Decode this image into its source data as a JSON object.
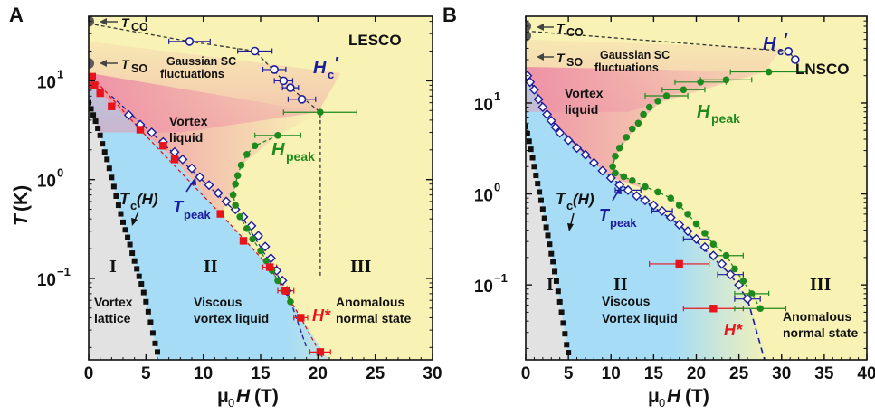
{
  "figure": {
    "ylabel_T": "T",
    "ylabel_unit": "(K)",
    "xlabel_mu": "μ",
    "xlabel_sub0": "0",
    "xlabel_H": "H",
    "xlabel_unit": "(T)"
  },
  "colors": {
    "normal_bg": "#f8f2b4",
    "vortex_liquid": "#a6dcf6",
    "vortex_lattice": "#e2e2e2",
    "vortex_liquid_pink": "#ee8ea6",
    "tc_marker": "#111111",
    "hstar": "#e8141c",
    "hpeak": "#1e8a1e",
    "tpeak": "#1c1c9c",
    "hc_prime": "#1c1c9c",
    "gray_marker": "#5a5a5a"
  },
  "chart_data": [
    {
      "panel": "A",
      "type": "scatter",
      "sample": "LESCO",
      "x_scale": "linear",
      "y_scale": "log",
      "xlim": [
        0,
        30
      ],
      "ylim": [
        0.015,
        45
      ],
      "x_ticks": [
        0,
        5,
        10,
        15,
        20,
        25,
        30
      ],
      "y_ticks": [
        {
          "v": 10,
          "base": "10",
          "exp": "1"
        },
        {
          "v": 1,
          "base": "10",
          "exp": "0"
        },
        {
          "v": 0.1,
          "base": "10",
          "exp": "−1"
        }
      ],
      "labels": {
        "tco_T": "T",
        "tco_sub": "CO",
        "tso_T": "T",
        "tso_sub": "SO",
        "gauss_1": "Gaussian SC",
        "gauss_2": "fluctuations",
        "vortex_1": "Vortex",
        "vortex_2": "liquid",
        "hc_H": "H",
        "hc_sub": "c",
        "hc_prime": "′",
        "hpeak_H": "H",
        "hpeak_sub": "peak",
        "tpeak_T": "T",
        "tpeak_sub": "peak",
        "tc_T": "T",
        "tc_sub": "c",
        "tc_H": "(H)",
        "region_I": "I",
        "region_II": "II",
        "region_III": "III",
        "lattice_1": "Vortex",
        "lattice_2": "lattice",
        "viscous_1": "Viscous",
        "viscous_2": "vortex liquid",
        "anom_1": "Anomalous",
        "anom_2": "normal state",
        "hstar": "H*"
      },
      "tc_H": [
        [
          0,
          6
        ],
        [
          0.2,
          5.2
        ],
        [
          0.4,
          4.5
        ],
        [
          0.6,
          3.9
        ],
        [
          0.8,
          3.3
        ],
        [
          1.0,
          2.8
        ],
        [
          1.2,
          2.3
        ],
        [
          1.4,
          1.9
        ],
        [
          1.6,
          1.6
        ],
        [
          1.8,
          1.3
        ],
        [
          2.0,
          1.05
        ],
        [
          2.2,
          0.85
        ],
        [
          2.4,
          0.68
        ],
        [
          2.6,
          0.55
        ],
        [
          2.8,
          0.45
        ],
        [
          3.0,
          0.37
        ],
        [
          3.2,
          0.31
        ],
        [
          3.4,
          0.26
        ],
        [
          3.6,
          0.22
        ],
        [
          3.8,
          0.18
        ],
        [
          4.0,
          0.15
        ],
        [
          4.2,
          0.125
        ],
        [
          4.4,
          0.105
        ],
        [
          4.6,
          0.088
        ],
        [
          4.8,
          0.072
        ],
        [
          5.0,
          0.058
        ],
        [
          5.2,
          0.046
        ],
        [
          5.4,
          0.036
        ],
        [
          5.6,
          0.028
        ],
        [
          5.8,
          0.022
        ],
        [
          6.0,
          0.018
        ]
      ],
      "hstar": [
        [
          0.3,
          11
        ],
        [
          0.5,
          9
        ],
        [
          1.0,
          7.5
        ],
        [
          2.0,
          5.5
        ],
        [
          4.5,
          3.2
        ],
        [
          6.5,
          2.2
        ],
        [
          7.5,
          1.6
        ],
        [
          11.5,
          0.45
        ],
        [
          13.5,
          0.24
        ],
        [
          15.8,
          0.13
        ],
        [
          17.2,
          0.075
        ],
        [
          18.5,
          0.04
        ],
        [
          20.2,
          0.018
        ]
      ],
      "hstar_err": [
        [
          15.8,
          0.13,
          0.6
        ],
        [
          17.2,
          0.075,
          0.7
        ],
        [
          18.5,
          0.04,
          0.6
        ],
        [
          20.2,
          0.018,
          0.9
        ]
      ],
      "hpeak": [
        [
          20.2,
          4.8
        ],
        [
          16.5,
          2.8
        ],
        [
          14.5,
          2.2
        ],
        [
          13.8,
          1.8
        ],
        [
          13.3,
          1.4
        ],
        [
          13.0,
          1.1
        ],
        [
          12.8,
          0.9
        ],
        [
          12.6,
          0.7
        ],
        [
          12.8,
          0.55
        ],
        [
          13.2,
          0.42
        ],
        [
          13.8,
          0.32
        ],
        [
          14.3,
          0.25
        ],
        [
          15.0,
          0.19
        ],
        [
          15.5,
          0.15
        ],
        [
          16.0,
          0.12
        ],
        [
          16.5,
          0.095
        ],
        [
          17.0,
          0.075
        ],
        [
          17.6,
          0.058
        ]
      ],
      "hpeak_err": [
        [
          20.2,
          4.8,
          3.2
        ],
        [
          16.5,
          2.8,
          2.0
        ]
      ],
      "tpeak": [
        [
          3.5,
          4.5
        ],
        [
          4.5,
          3.6
        ],
        [
          5.5,
          3.0
        ],
        [
          6.5,
          2.4
        ],
        [
          7.5,
          1.9
        ],
        [
          8.2,
          1.6
        ],
        [
          9.0,
          1.3
        ],
        [
          9.7,
          1.06
        ],
        [
          10.5,
          0.88
        ],
        [
          11.3,
          0.73
        ],
        [
          12.0,
          0.6
        ],
        [
          12.8,
          0.5
        ],
        [
          13.5,
          0.42
        ],
        [
          14.2,
          0.34
        ],
        [
          14.8,
          0.27
        ],
        [
          15.4,
          0.21
        ],
        [
          15.9,
          0.16
        ],
        [
          16.4,
          0.12
        ],
        [
          16.9,
          0.095
        ],
        [
          17.3,
          0.075
        ]
      ],
      "hc_prime": [
        [
          8.8,
          25
        ],
        [
          14.5,
          20
        ],
        [
          16.2,
          13
        ],
        [
          17.0,
          10
        ],
        [
          17.6,
          8.5
        ],
        [
          18.6,
          6.5
        ]
      ],
      "hc_prime_err": [
        [
          8.8,
          25,
          1.8
        ],
        [
          14.5,
          20,
          1.5
        ],
        [
          16.2,
          13,
          1.0
        ],
        [
          17.0,
          10,
          0.8
        ],
        [
          17.6,
          8.5,
          0.7
        ],
        [
          18.6,
          6.5,
          1.2
        ]
      ],
      "gray_points": [
        [
          0,
          40
        ],
        [
          0,
          15
        ]
      ]
    },
    {
      "panel": "B",
      "type": "scatter",
      "sample": "LNSCO",
      "x_scale": "linear",
      "y_scale": "log",
      "xlim": [
        0,
        40
      ],
      "ylim": [
        0.015,
        90
      ],
      "x_ticks": [
        0,
        5,
        10,
        15,
        20,
        25,
        30,
        35,
        40
      ],
      "y_ticks": [
        {
          "v": 10,
          "base": "10",
          "exp": "1"
        },
        {
          "v": 1,
          "base": "10",
          "exp": "0"
        },
        {
          "v": 0.1,
          "base": "10",
          "exp": "−1"
        }
      ],
      "labels": {
        "tco_T": "T",
        "tco_sub": "CO",
        "tso_T": "T",
        "tso_sub": "SO",
        "gauss_1": "Gaussian SC",
        "gauss_2": "fluctuations",
        "vortex_1": "Vortex",
        "vortex_2": "liquid",
        "hc_H": "H",
        "hc_sub": "c",
        "hc_prime": "′",
        "hpeak_H": "H",
        "hpeak_sub": "peak",
        "tpeak_T": "T",
        "tpeak_sub": "peak",
        "tc_T": "T",
        "tc_sub": "c",
        "tc_H": "(H)",
        "region_I": "I",
        "region_II": "II",
        "region_III": "III",
        "lattice_1": "Vortex",
        "lattice_2": "lattice",
        "viscous_1": "Viscous",
        "viscous_2": "Vortex liquid",
        "anom_1": "Anomalous",
        "anom_2": "normal state",
        "hstar": "H*"
      },
      "tc_H": [
        [
          0,
          5.5
        ],
        [
          0.2,
          4.6
        ],
        [
          0.4,
          3.8
        ],
        [
          0.6,
          3.1
        ],
        [
          0.8,
          2.5
        ],
        [
          1.0,
          2.0
        ],
        [
          1.2,
          1.6
        ],
        [
          1.4,
          1.3
        ],
        [
          1.6,
          1.05
        ],
        [
          1.8,
          0.85
        ],
        [
          2.0,
          0.68
        ],
        [
          2.2,
          0.54
        ],
        [
          2.4,
          0.43
        ],
        [
          2.6,
          0.35
        ],
        [
          2.8,
          0.28
        ],
        [
          3.0,
          0.22
        ],
        [
          3.2,
          0.18
        ],
        [
          3.4,
          0.14
        ],
        [
          3.6,
          0.11
        ],
        [
          3.8,
          0.085
        ],
        [
          4.0,
          0.065
        ],
        [
          4.2,
          0.05
        ],
        [
          4.4,
          0.038
        ],
        [
          4.6,
          0.029
        ],
        [
          4.8,
          0.022
        ],
        [
          5.0,
          0.018
        ]
      ],
      "hstar": [
        [
          18,
          0.17
        ],
        [
          22,
          0.055
        ]
      ],
      "hstar_err": [
        [
          18,
          0.17,
          3.5
        ],
        [
          22,
          0.055,
          3.5
        ]
      ],
      "hpeak": [
        [
          28.5,
          22
        ],
        [
          23.5,
          18
        ],
        [
          20.5,
          17
        ],
        [
          18.5,
          14
        ],
        [
          16.5,
          12
        ],
        [
          15.5,
          10.5
        ],
        [
          14.5,
          9
        ],
        [
          13.8,
          7.5
        ],
        [
          13.2,
          6
        ],
        [
          12.5,
          5.2
        ],
        [
          11.8,
          4.2
        ],
        [
          11.0,
          3.2
        ],
        [
          10.5,
          2.6
        ],
        [
          10.2,
          2.0
        ],
        [
          10.5,
          1.7
        ],
        [
          11.5,
          1.55
        ],
        [
          12.5,
          1.4
        ],
        [
          14.0,
          1.2
        ],
        [
          15.5,
          1.05
        ],
        [
          17.0,
          0.9
        ],
        [
          18.0,
          0.75
        ],
        [
          19.0,
          0.6
        ],
        [
          20.0,
          0.47
        ],
        [
          21.0,
          0.37
        ],
        [
          22.0,
          0.28
        ],
        [
          23.5,
          0.21
        ],
        [
          24.5,
          0.15
        ],
        [
          25.5,
          0.11
        ],
        [
          26.5,
          0.08
        ],
        [
          27.5,
          0.055
        ]
      ],
      "hpeak_err": [
        [
          28.5,
          22,
          4.5
        ],
        [
          23.5,
          18,
          3.0
        ],
        [
          20.5,
          17,
          3.0
        ],
        [
          18.5,
          14,
          2.5
        ],
        [
          16.5,
          12,
          2.5
        ],
        [
          23.5,
          0.21,
          2.0
        ],
        [
          26.5,
          0.08,
          2.0
        ],
        [
          27.5,
          0.055,
          3.0
        ]
      ],
      "tpeak": [
        [
          0.2,
          20
        ],
        [
          0.5,
          17
        ],
        [
          1.0,
          14
        ],
        [
          1.5,
          11
        ],
        [
          2.0,
          9
        ],
        [
          2.5,
          7.5
        ],
        [
          3.0,
          6.4
        ],
        [
          3.5,
          5.4
        ],
        [
          4.0,
          4.7
        ],
        [
          5.0,
          3.9
        ],
        [
          6.0,
          3.2
        ],
        [
          7.0,
          2.7
        ],
        [
          8.0,
          2.2
        ],
        [
          9.0,
          1.8
        ],
        [
          10.0,
          1.5
        ],
        [
          11.0,
          1.25
        ],
        [
          12.0,
          1.1
        ],
        [
          13.0,
          0.95
        ],
        [
          14.0,
          0.85
        ],
        [
          15.0,
          0.75
        ],
        [
          16.0,
          0.65
        ],
        [
          17.0,
          0.55
        ],
        [
          18.0,
          0.46
        ],
        [
          19.0,
          0.39
        ],
        [
          20.0,
          0.32
        ],
        [
          21.0,
          0.26
        ],
        [
          22.0,
          0.21
        ],
        [
          23.0,
          0.17
        ],
        [
          24.0,
          0.13
        ],
        [
          25.0,
          0.1
        ],
        [
          26.0,
          0.07
        ]
      ],
      "tpeak_err": [
        [
          12.0,
          1.1,
          1.5
        ],
        [
          16.0,
          0.65,
          1.2
        ],
        [
          20.0,
          0.32,
          1.5
        ],
        [
          24.0,
          0.13,
          1.5
        ],
        [
          26.0,
          0.07,
          1.5
        ]
      ],
      "hc_prime": [
        [
          30.8,
          37
        ],
        [
          31.6,
          30
        ]
      ],
      "hc_prime_err": [],
      "gray_points": [
        [
          0,
          70
        ],
        [
          0,
          55
        ]
      ]
    }
  ]
}
